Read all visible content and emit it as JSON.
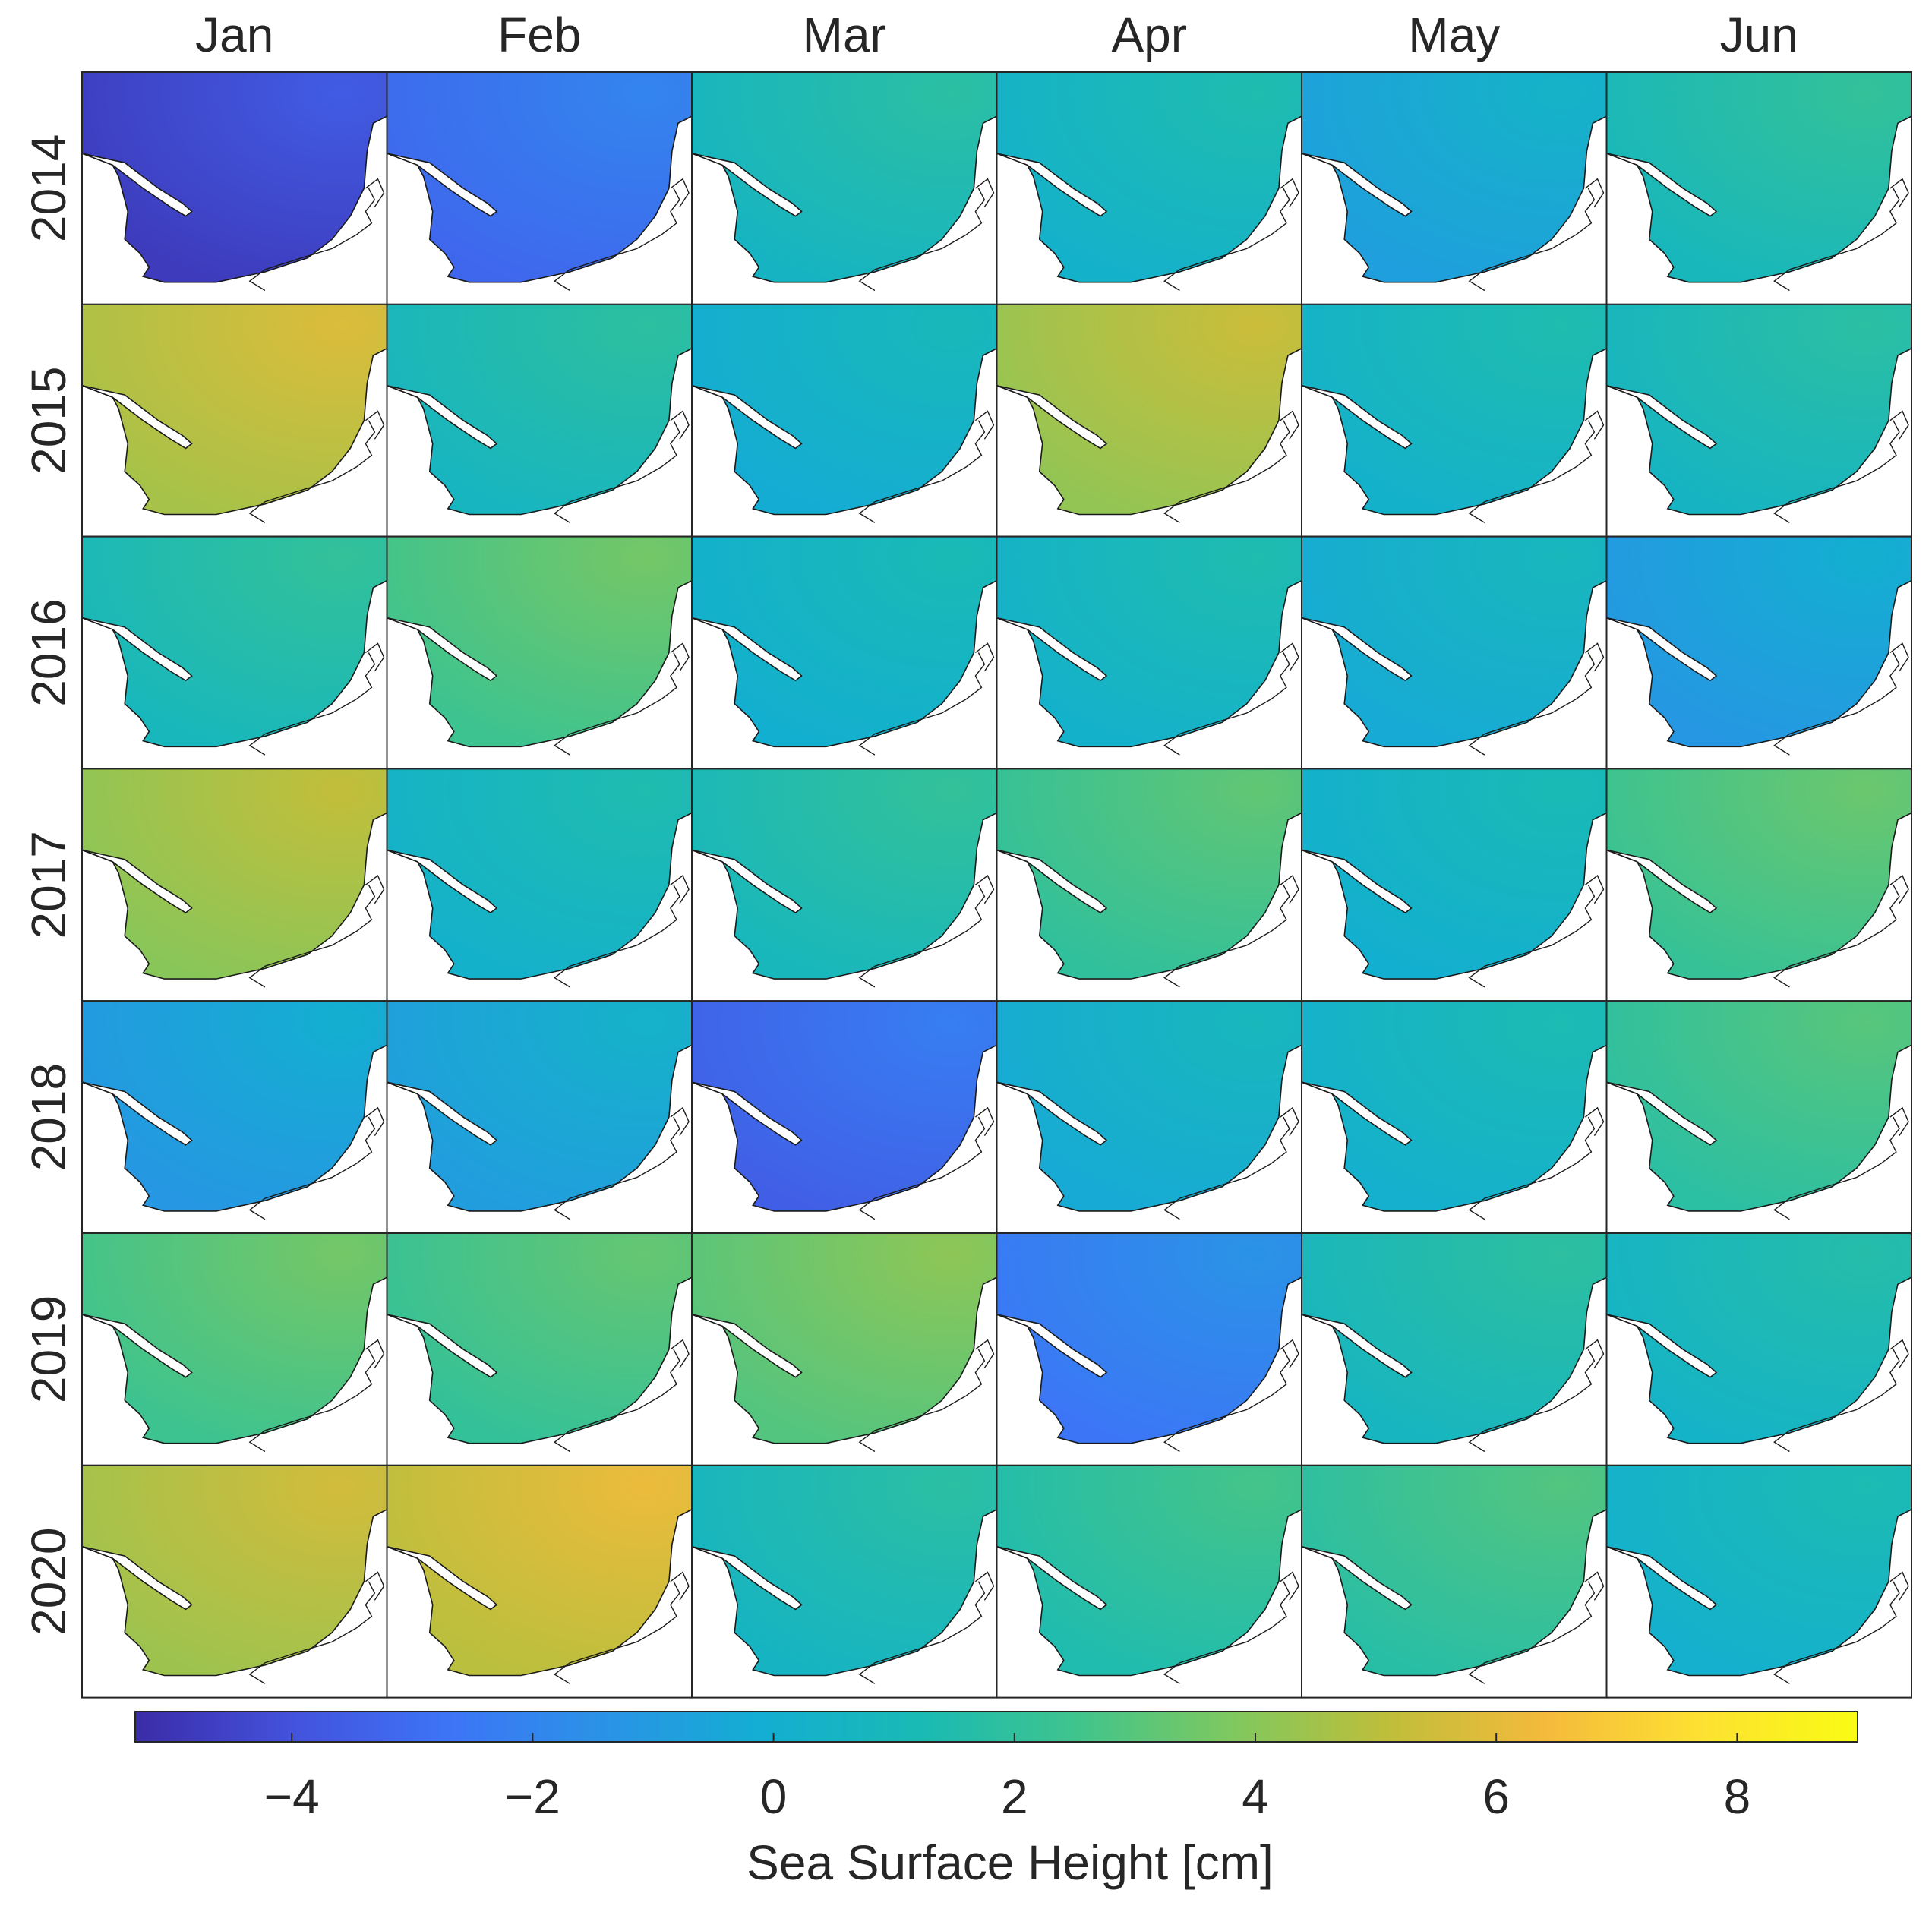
{
  "chart_data": {
    "type": "heatmap",
    "subtype": "small-multiple spatial maps",
    "columns": [
      "Jan",
      "Feb",
      "Mar",
      "Apr",
      "May",
      "Jun"
    ],
    "rows": [
      "2014",
      "2015",
      "2016",
      "2017",
      "2018",
      "2019",
      "2020"
    ],
    "values_cm": [
      [
        -4.2,
        -2.6,
        1.2,
        0.8,
        -0.2,
        1.5
      ],
      [
        5.2,
        1.3,
        0.4,
        4.8,
        0.8,
        1.2
      ],
      [
        1.5,
        3.0,
        0.6,
        0.8,
        0.3,
        -0.6
      ],
      [
        4.6,
        0.8,
        1.5,
        2.6,
        0.6,
        2.8
      ],
      [
        -0.6,
        -0.3,
        -2.9,
        0.3,
        0.7,
        2.4
      ],
      [
        3.0,
        2.7,
        3.5,
        -2.0,
        1.3,
        1.0
      ],
      [
        5.0,
        5.6,
        1.2,
        2.0,
        2.3,
        0.7
      ]
    ],
    "colorbar": {
      "label": "Sea Surface Height [cm]",
      "range": [
        -5.3,
        9.0
      ],
      "ticks": [
        -4,
        -2,
        0,
        2,
        4,
        6,
        8
      ],
      "tick_labels": [
        "−4",
        "−2",
        "0",
        "2",
        "4",
        "6",
        "8"
      ],
      "colormap": "parula",
      "colors": [
        "#3b2ca8",
        "#4352dc",
        "#3d74f7",
        "#2a93e6",
        "#13aed2",
        "#19bab5",
        "#3fc48d",
        "#7fc85f",
        "#bfbe3a",
        "#f4ba3c",
        "#fde132",
        "#f9fb14"
      ]
    },
    "coastline_color": "#1a1a1a",
    "land_color": "#ffffff"
  }
}
